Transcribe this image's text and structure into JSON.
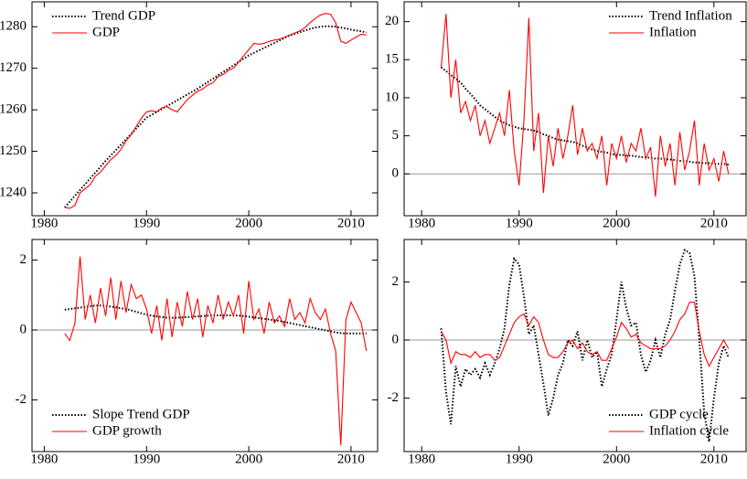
{
  "chart_data": [
    {
      "type": "line",
      "x": [
        1982.0,
        1982.5,
        1983.0,
        1983.5,
        1984.0,
        1984.5,
        1985.0,
        1985.5,
        1986.0,
        1986.5,
        1987.0,
        1987.5,
        1988.0,
        1988.5,
        1989.0,
        1989.5,
        1990.0,
        1990.5,
        1991.0,
        1991.5,
        1992.0,
        1992.5,
        1993.0,
        1993.5,
        1994.0,
        1994.5,
        1995.0,
        1995.5,
        1996.0,
        1996.5,
        1997.0,
        1997.5,
        1998.0,
        1998.5,
        1999.0,
        1999.5,
        2000.0,
        2000.5,
        2001.0,
        2001.5,
        2002.0,
        2002.5,
        2003.0,
        2003.5,
        2004.0,
        2004.5,
        2005.0,
        2005.5,
        2006.0,
        2006.5,
        2007.0,
        2007.5,
        2008.0,
        2008.5,
        2009.0,
        2009.5,
        2010.0,
        2010.5,
        2011.0,
        2011.5
      ],
      "series": [
        {
          "name": "Trend GDP",
          "color": "#000000",
          "style": "dotted",
          "values": [
            1236.5,
            1237.9,
            1239.3,
            1240.7,
            1242.1,
            1243.5,
            1244.9,
            1246.3,
            1247.7,
            1249.0,
            1250.3,
            1251.6,
            1252.9,
            1254.2,
            1255.5,
            1256.8,
            1258.1,
            1258.8,
            1259.5,
            1260.2,
            1260.9,
            1261.6,
            1262.3,
            1263.0,
            1263.7,
            1264.4,
            1265.1,
            1265.9,
            1266.7,
            1267.5,
            1268.3,
            1269.1,
            1269.9,
            1270.7,
            1271.5,
            1272.3,
            1273.1,
            1273.7,
            1274.3,
            1274.9,
            1275.5,
            1276.1,
            1276.7,
            1277.3,
            1277.9,
            1278.3,
            1278.7,
            1279.1,
            1279.5,
            1279.8,
            1280.0,
            1280.1,
            1280.1,
            1280.0,
            1279.8,
            1279.6,
            1279.3,
            1279.1,
            1278.9,
            1278.6
          ]
        },
        {
          "name": "GDP",
          "color": "#ff0000",
          "style": "solid",
          "values": [
            1236.5,
            1236.3,
            1237.0,
            1240.0,
            1241.0,
            1242.0,
            1244.0,
            1245.0,
            1246.5,
            1248.0,
            1249.0,
            1250.5,
            1252.5,
            1254.0,
            1256.0,
            1258.0,
            1259.5,
            1259.8,
            1259.5,
            1260.5,
            1260.8,
            1260.0,
            1259.5,
            1261.0,
            1262.5,
            1263.5,
            1264.5,
            1265.0,
            1266.0,
            1266.5,
            1268.0,
            1268.5,
            1269.5,
            1270.0,
            1271.5,
            1273.0,
            1274.5,
            1276.0,
            1275.8,
            1276.0,
            1276.5,
            1276.8,
            1277.0,
            1277.5,
            1278.0,
            1278.5,
            1279.0,
            1279.8,
            1281.0,
            1282.0,
            1282.8,
            1283.2,
            1283.0,
            1281.0,
            1276.5,
            1276.0,
            1276.8,
            1277.5,
            1278.2,
            1278.0
          ]
        }
      ],
      "xlim": [
        1978.8,
        2012.6
      ],
      "xticks": [
        1980,
        1990,
        2000,
        2010
      ],
      "ylim": [
        1234.5,
        1286
      ],
      "yticks": [
        1240,
        1250,
        1260,
        1270,
        1280
      ],
      "zero_line": false,
      "legend": "top-left"
    },
    {
      "type": "line",
      "x": [
        1982.0,
        1982.5,
        1983.0,
        1983.5,
        1984.0,
        1984.5,
        1985.0,
        1985.5,
        1986.0,
        1986.5,
        1987.0,
        1987.5,
        1988.0,
        1988.5,
        1989.0,
        1989.5,
        1990.0,
        1990.5,
        1991.0,
        1991.5,
        1992.0,
        1992.5,
        1993.0,
        1993.5,
        1994.0,
        1994.5,
        1995.0,
        1995.5,
        1996.0,
        1996.5,
        1997.0,
        1997.5,
        1998.0,
        1998.5,
        1999.0,
        1999.5,
        2000.0,
        2000.5,
        2001.0,
        2001.5,
        2002.0,
        2002.5,
        2003.0,
        2003.5,
        2004.0,
        2004.5,
        2005.0,
        2005.5,
        2006.0,
        2006.5,
        2007.0,
        2007.5,
        2008.0,
        2008.5,
        2009.0,
        2009.5,
        2010.0,
        2010.5,
        2011.0,
        2011.5
      ],
      "series": [
        {
          "name": "Trend Inflation",
          "color": "#000000",
          "style": "dotted",
          "values": [
            14,
            13.5,
            13,
            12.5,
            12,
            11.2,
            10.5,
            9.8,
            9,
            8.5,
            8,
            7.5,
            7,
            6.7,
            6.4,
            6.2,
            6,
            5.9,
            5.8,
            5.7,
            5.5,
            5.2,
            5,
            4.7,
            4.5,
            4.4,
            4.3,
            4.2,
            4,
            3.7,
            3.5,
            3.2,
            3,
            2.9,
            2.8,
            2.6,
            2.5,
            2.5,
            2.4,
            2.4,
            2.3,
            2.2,
            2.2,
            2.1,
            2,
            2,
            1.9,
            1.9,
            1.8,
            1.7,
            1.7,
            1.6,
            1.5,
            1.5,
            1.4,
            1.4,
            1.3,
            1.3,
            1.3,
            1.2
          ]
        },
        {
          "name": "Inflation",
          "color": "#ff0000",
          "style": "solid",
          "values": [
            14,
            21,
            10,
            15,
            8,
            9.5,
            7,
            9,
            5,
            7,
            4,
            6,
            8,
            5,
            11,
            3,
            -1.5,
            7,
            20.5,
            3,
            8,
            -2.5,
            5,
            1,
            6,
            2,
            5,
            9,
            2.5,
            6,
            3,
            4,
            2,
            5,
            -1.5,
            4,
            2,
            5,
            1.5,
            4,
            3,
            6,
            2,
            3.5,
            -3,
            5,
            1,
            4,
            -1.5,
            5.5,
            0.5,
            3,
            7,
            -1.5,
            4,
            0.5,
            2,
            -1,
            3,
            0
          ]
        }
      ],
      "xlim": [
        1978.2,
        2013.3
      ],
      "xticks": [
        1980,
        1990,
        2000,
        2010
      ],
      "ylim": [
        -5.5,
        22.6
      ],
      "yticks": [
        0,
        5,
        10,
        15,
        20
      ],
      "zero_line": true,
      "legend": "top-right"
    },
    {
      "type": "line",
      "x": [
        1982.0,
        1982.5,
        1983.0,
        1983.5,
        1984.0,
        1984.5,
        1985.0,
        1985.5,
        1986.0,
        1986.5,
        1987.0,
        1987.5,
        1988.0,
        1988.5,
        1989.0,
        1989.5,
        1990.0,
        1990.5,
        1991.0,
        1991.5,
        1992.0,
        1992.5,
        1993.0,
        1993.5,
        1994.0,
        1994.5,
        1995.0,
        1995.5,
        1996.0,
        1996.5,
        1997.0,
        1997.5,
        1998.0,
        1998.5,
        1999.0,
        1999.5,
        2000.0,
        2000.5,
        2001.0,
        2001.5,
        2002.0,
        2002.5,
        2003.0,
        2003.5,
        2004.0,
        2004.5,
        2005.0,
        2005.5,
        2006.0,
        2006.5,
        2007.0,
        2007.5,
        2008.0,
        2008.5,
        2009.0,
        2009.5,
        2010.0,
        2010.5,
        2011.0,
        2011.5
      ],
      "series": [
        {
          "name": "Slope Trend GDP",
          "color": "#000000",
          "style": "dotted",
          "values": [
            0.58,
            0.6,
            0.62,
            0.64,
            0.66,
            0.68,
            0.7,
            0.7,
            0.69,
            0.67,
            0.65,
            0.62,
            0.6,
            0.56,
            0.52,
            0.48,
            0.44,
            0.41,
            0.39,
            0.37,
            0.35,
            0.35,
            0.35,
            0.36,
            0.37,
            0.38,
            0.39,
            0.4,
            0.41,
            0.42,
            0.42,
            0.42,
            0.42,
            0.42,
            0.41,
            0.4,
            0.38,
            0.36,
            0.34,
            0.32,
            0.3,
            0.28,
            0.26,
            0.23,
            0.2,
            0.17,
            0.14,
            0.11,
            0.08,
            0.05,
            0.02,
            -0.01,
            -0.04,
            -0.07,
            -0.09,
            -0.1,
            -0.1,
            -0.1,
            -0.1,
            -0.1
          ]
        },
        {
          "name": "GDP growth",
          "color": "#ff0000",
          "style": "solid",
          "values": [
            -0.1,
            -0.3,
            0.2,
            2.1,
            0.3,
            1.0,
            0.2,
            1.2,
            0.4,
            1.5,
            0.3,
            1.4,
            0.5,
            1.3,
            0.9,
            1.0,
            0.6,
            -0.1,
            0.7,
            -0.3,
            0.9,
            -0.2,
            0.8,
            0.1,
            1.1,
            0.3,
            0.9,
            -0.2,
            0.7,
            0.2,
            1.0,
            0.3,
            0.8,
            0.4,
            1.0,
            -0.1,
            1.4,
            0.3,
            0.6,
            -0.1,
            0.8,
            0.2,
            0.4,
            0.1,
            0.9,
            0.3,
            0.5,
            0.2,
            0.9,
            0.5,
            0.3,
            0.6,
            -0.1,
            -0.6,
            -3.3,
            0.3,
            0.8,
            0.5,
            0.2,
            -0.6
          ]
        }
      ],
      "xlim": [
        1978.8,
        2012.6
      ],
      "xticks": [
        1980,
        1990,
        2000,
        2010
      ],
      "ylim": [
        -3.48,
        2.59
      ],
      "yticks": [
        -2,
        0,
        2
      ],
      "zero_line": true,
      "legend": "bottom-left"
    },
    {
      "type": "line",
      "x": [
        1982.0,
        1982.5,
        1983.0,
        1983.5,
        1984.0,
        1984.5,
        1985.0,
        1985.5,
        1986.0,
        1986.5,
        1987.0,
        1987.5,
        1988.0,
        1988.5,
        1989.0,
        1989.5,
        1990.0,
        1990.5,
        1991.0,
        1991.5,
        1992.0,
        1992.5,
        1993.0,
        1993.5,
        1994.0,
        1994.5,
        1995.0,
        1995.5,
        1996.0,
        1996.5,
        1997.0,
        1997.5,
        1998.0,
        1998.5,
        1999.0,
        1999.5,
        2000.0,
        2000.5,
        2001.0,
        2001.5,
        2002.0,
        2002.5,
        2003.0,
        2003.5,
        2004.0,
        2004.5,
        2005.0,
        2005.5,
        2006.0,
        2006.5,
        2007.0,
        2007.5,
        2008.0,
        2008.5,
        2009.0,
        2009.5,
        2010.0,
        2010.5,
        2011.0,
        2011.5
      ],
      "series": [
        {
          "name": "GDP cycle",
          "color": "#000000",
          "style": "dotted",
          "values": [
            0.4,
            -1.8,
            -2.9,
            -0.9,
            -1.6,
            -1.0,
            -1.2,
            -1.0,
            -1.3,
            -0.8,
            -1.2,
            -0.8,
            -0.3,
            0.4,
            1.9,
            2.8,
            2.6,
            1.5,
            0.2,
            0.5,
            -0.5,
            -1.5,
            -2.6,
            -2.0,
            -1.2,
            -0.8,
            0.0,
            -0.2,
            0.3,
            -0.7,
            0.0,
            -0.6,
            -0.4,
            -1.6,
            -1.0,
            -0.5,
            0.7,
            2.0,
            1.1,
            0.5,
            0.6,
            -0.5,
            -1.1,
            -0.7,
            0.0,
            -0.6,
            0.2,
            0.7,
            1.7,
            2.6,
            3.1,
            3.0,
            2.2,
            0.0,
            -2.5,
            -3.5,
            -2.0,
            -0.8,
            -0.2,
            -0.6
          ]
        },
        {
          "name": "Inflation cycle",
          "color": "#ff0000",
          "style": "solid",
          "values": [
            0.3,
            0.0,
            -0.8,
            -0.4,
            -0.5,
            -0.5,
            -0.6,
            -0.4,
            -0.6,
            -0.5,
            -0.5,
            -0.7,
            -0.6,
            -0.2,
            0.2,
            0.6,
            0.8,
            0.9,
            0.5,
            0.8,
            0.6,
            0.0,
            -0.5,
            -0.6,
            -0.6,
            -0.4,
            -0.1,
            0.0,
            -0.3,
            -0.1,
            -0.4,
            -0.5,
            -0.4,
            -0.7,
            -0.7,
            -0.3,
            0.1,
            0.6,
            0.4,
            0.1,
            0.2,
            -0.1,
            -0.2,
            -0.3,
            -0.3,
            -0.3,
            -0.2,
            0.0,
            0.3,
            0.7,
            0.9,
            1.3,
            1.3,
            0.3,
            -0.5,
            -0.9,
            -0.6,
            -0.3,
            0.0,
            -0.3
          ]
        }
      ],
      "xlim": [
        1978.2,
        2013.3
      ],
      "xticks": [
        1980,
        1990,
        2000,
        2010
      ],
      "ylim": [
        -3.84,
        3.46
      ],
      "yticks": [
        -2,
        0,
        2
      ],
      "zero_line": true,
      "legend": "bottom-right"
    }
  ]
}
